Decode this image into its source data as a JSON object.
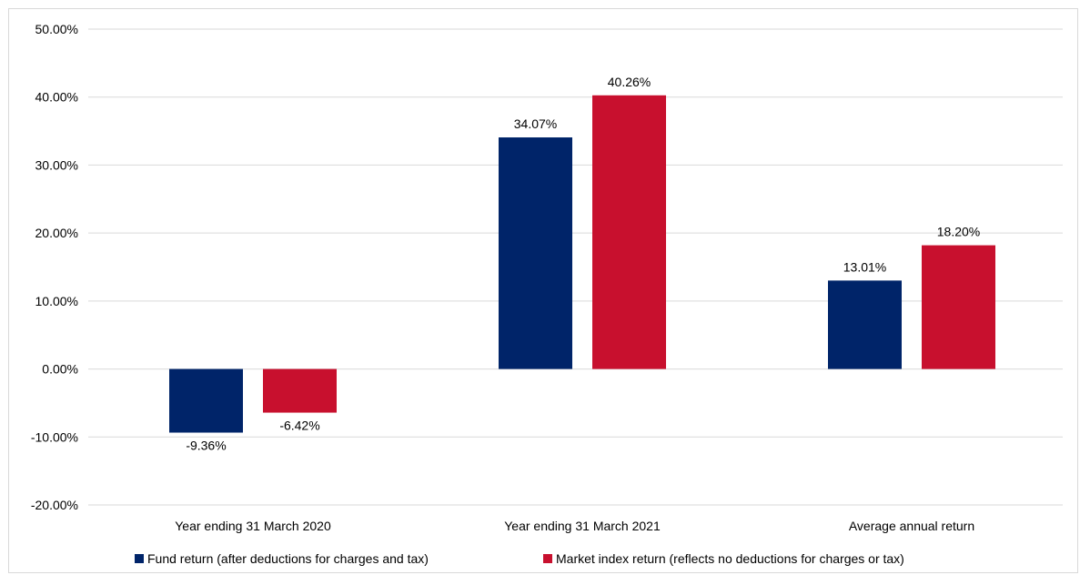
{
  "chart_data": {
    "type": "bar",
    "title": "",
    "xlabel": "",
    "ylabel": "",
    "ylim": [
      -20,
      50
    ],
    "yticks": [
      50,
      40,
      30,
      20,
      10,
      0,
      -10,
      -20
    ],
    "ytick_labels": [
      "50.00%",
      "40.00%",
      "30.00%",
      "20.00%",
      "10.00%",
      "0.00%",
      "-10.00%",
      "-20.00%"
    ],
    "categories": [
      "Year ending 31 March 2020",
      "Year ending 31 March 2021",
      "Average annual return"
    ],
    "series": [
      {
        "name": "Fund return (after deductions for charges and tax)",
        "color": "#002469",
        "values": [
          -9.36,
          34.07,
          13.01
        ],
        "labels": [
          "-9.36%",
          "34.07%",
          "13.01%"
        ]
      },
      {
        "name": "Market index return (reflects no deductions for charges or tax)",
        "color": "#c8102e",
        "values": [
          -6.42,
          40.26,
          18.2
        ],
        "labels": [
          "-6.42%",
          "40.26%",
          "18.20%"
        ]
      }
    ],
    "grid": true,
    "legend_position": "bottom"
  }
}
